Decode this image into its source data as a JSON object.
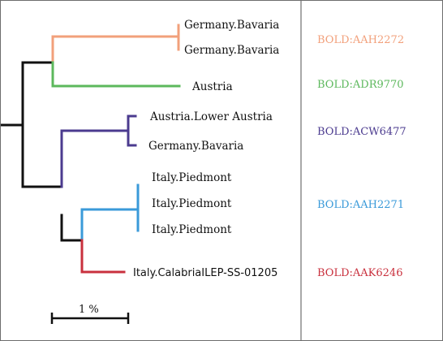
{
  "tips": {
    "t1": "Germany.Bavaria",
    "t2": "Germany.Bavaria",
    "t3": "Austria",
    "t4": "Austria.Lower Austria",
    "t5": "Germany.Bavaria",
    "t6": "Italy.Piedmont",
    "t7": "Italy.Piedmont",
    "t8": "Italy.Piedmont",
    "t9": "Italy.CalabriaILEP-SS-01205"
  },
  "bins": [
    {
      "label": "BOLD:AAH2272",
      "color": "#f2a07b"
    },
    {
      "label": "BOLD:ADR9770",
      "color": "#5cb85c"
    },
    {
      "label": "BOLD:ACW6477",
      "color": "#4b3b8f"
    },
    {
      "label": "BOLD:AAH2271",
      "color": "#3a9ad9"
    },
    {
      "label": "BOLD:AAK6246",
      "color": "#c9303d"
    }
  ],
  "scale_bar": {
    "label": "1 %"
  },
  "colors": {
    "backbone": "#111111",
    "divider": "#6e6e6e"
  }
}
